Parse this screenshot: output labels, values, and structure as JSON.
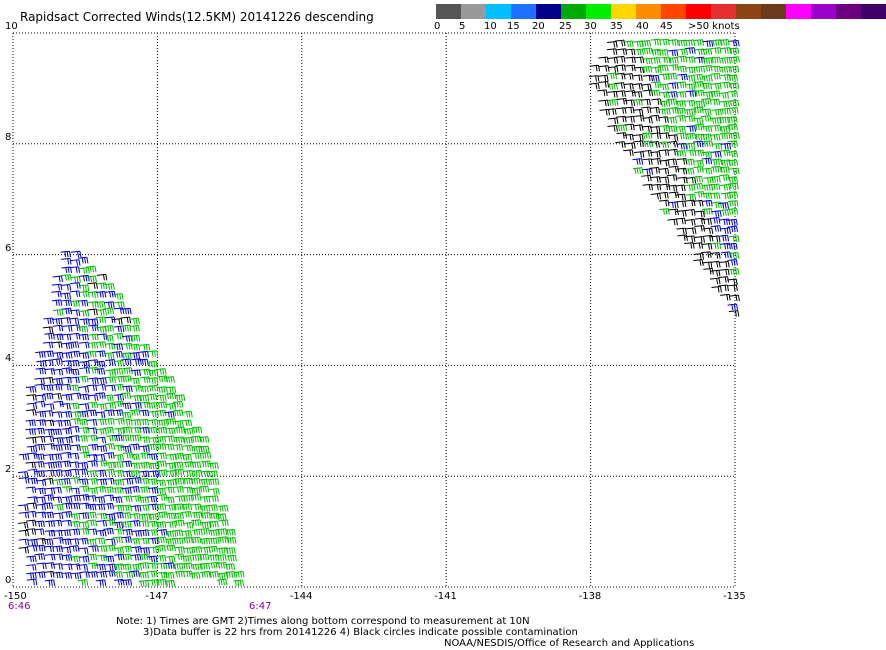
{
  "title": "Rapidsact Corrected Winds(12.5KM) 20141226 descending",
  "legend": {
    "colors": [
      "#555555",
      "#999999",
      "#00bfff",
      "#1e70ff",
      "#00008b",
      "#00aa00",
      "#00ee00",
      "#ffd700",
      "#ff8c00",
      "#ff4500",
      "#ff0000",
      "#e53030",
      "#8b4513",
      "#6b3a1a",
      "#ff00ff",
      "#9900cc",
      "#6a0080",
      "#40006a"
    ],
    "labels": [
      "0",
      "5",
      "10",
      "15",
      "20",
      "25",
      "30",
      "35",
      "40",
      "45",
      ">50 knots"
    ]
  },
  "axes": {
    "x_ticks": [
      "-150",
      "-147",
      "-144",
      "-141",
      "-138",
      "-135"
    ],
    "y_ticks": [
      "0",
      "2",
      "4",
      "6",
      "8",
      "10"
    ]
  },
  "times": {
    "left_start": "6:46",
    "left_end": "6:47"
  },
  "notes": [
    "Note: 1) Times are GMT 2)Times along bottom correspond to measurement at 10N",
    "3)Data buffer is 22 hrs from 20141226 4) Black circles indicate possible contamination",
    "NOAA/NESDIS/Office of Research and Applications"
  ],
  "map_data": {
    "lon_range": [
      -150,
      -135
    ],
    "lat_range": [
      0,
      10
    ],
    "swaths": [
      {
        "name": "left",
        "polygon": [
          [
            -149.9,
            0.1
          ],
          [
            -149.9,
            3.0
          ],
          [
            -149.0,
            6.3
          ],
          [
            -148.0,
            5.5
          ],
          [
            -147.0,
            4.0
          ],
          [
            -146.0,
            2.5
          ],
          [
            -145.3,
            0.1
          ]
        ]
      },
      {
        "name": "right",
        "polygon": [
          [
            -137.5,
            10.0
          ],
          [
            -135.0,
            10.0
          ],
          [
            -135.0,
            4.8
          ],
          [
            -136.0,
            6.0
          ],
          [
            -137.5,
            8.0
          ],
          [
            -138.2,
            9.3
          ]
        ]
      }
    ],
    "speed_bands": [
      {
        "max_knots": 10,
        "color": "#000000"
      },
      {
        "max_knots": 15,
        "color": "#0000cd"
      },
      {
        "max_knots": 20,
        "color": "#00bb00"
      }
    ]
  }
}
